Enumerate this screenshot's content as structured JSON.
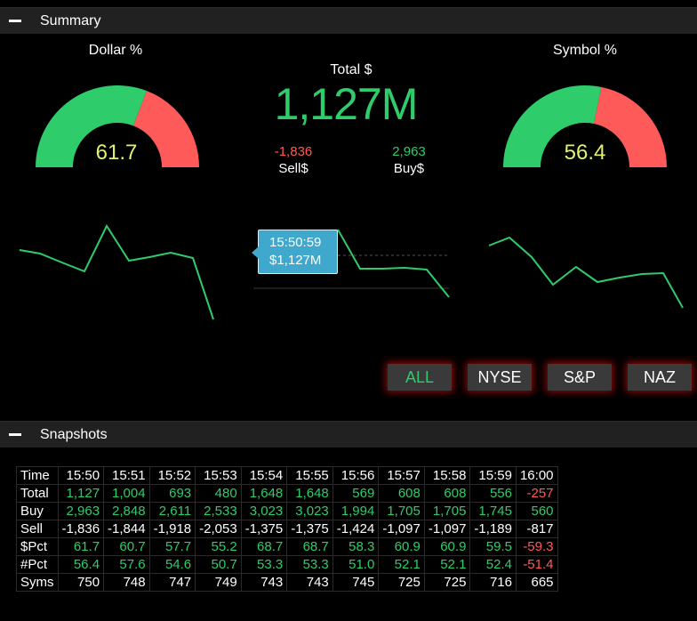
{
  "summary": {
    "header_title": "Summary",
    "dollar_label": "Dollar %",
    "dollar_value": "61.7",
    "dollar_pct": 61.7,
    "symbol_label": "Symbol %",
    "symbol_value": "56.4",
    "symbol_pct": 56.4,
    "total_label": "Total $",
    "total_value": "1,127M",
    "sell_value": "-1,836",
    "sell_label": "Sell$",
    "buy_value": "2,963",
    "buy_label": "Buy$",
    "tooltip_time": "15:50:59",
    "tooltip_value": "$1,127M"
  },
  "colors": {
    "positive": "#2ecc6b",
    "negative": "#ff5a5a",
    "gauge_text": "#e3f26b",
    "tooltip": "#3fa8cc"
  },
  "markets": [
    {
      "label": "ALL",
      "active": true
    },
    {
      "label": "NYSE",
      "active": false
    },
    {
      "label": "S&P",
      "active": false
    },
    {
      "label": "NAZ",
      "active": false
    }
  ],
  "snapshots": {
    "header_title": "Snapshots",
    "times": [
      "15:50",
      "15:51",
      "15:52",
      "15:53",
      "15:54",
      "15:55",
      "15:56",
      "15:57",
      "15:58",
      "15:59",
      "16:00"
    ],
    "rows": [
      {
        "label": "Total",
        "cells": [
          "1,127",
          "1,004",
          "693",
          "480",
          "1,648",
          "1,648",
          "569",
          "608",
          "608",
          "556",
          "-257"
        ],
        "style": "signed"
      },
      {
        "label": "Buy",
        "cells": [
          "2,963",
          "2,848",
          "2,611",
          "2,533",
          "3,023",
          "3,023",
          "1,994",
          "1,705",
          "1,705",
          "1,745",
          "560"
        ],
        "style": "positive"
      },
      {
        "label": "Sell",
        "cells": [
          "-1,836",
          "-1,844",
          "-1,918",
          "-2,053",
          "-1,375",
          "-1,375",
          "-1,424",
          "-1,097",
          "-1,097",
          "-1,189",
          "-817"
        ],
        "style": "white"
      },
      {
        "label": "$Pct",
        "cells": [
          "61.7",
          "60.7",
          "57.7",
          "55.2",
          "68.7",
          "68.7",
          "58.3",
          "60.9",
          "60.9",
          "59.5",
          "-59.3"
        ],
        "style": "signed"
      },
      {
        "label": "#Pct",
        "cells": [
          "56.4",
          "57.6",
          "54.6",
          "50.7",
          "53.3",
          "53.3",
          "51.0",
          "52.1",
          "52.1",
          "52.4",
          "-51.4"
        ],
        "style": "signed"
      },
      {
        "label": "Syms",
        "cells": [
          "750",
          "748",
          "747",
          "749",
          "743",
          "743",
          "745",
          "725",
          "725",
          "716",
          "665"
        ],
        "style": "white"
      }
    ]
  }
}
